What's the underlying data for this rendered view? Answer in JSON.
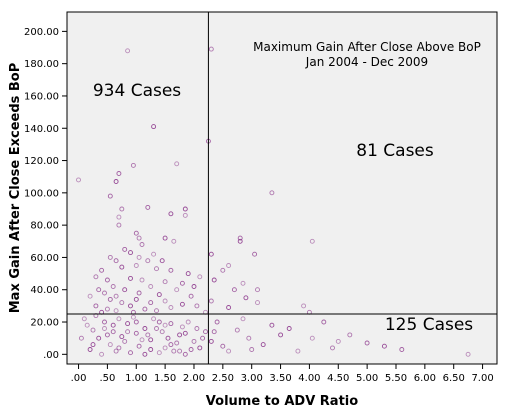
{
  "chart_data": {
    "type": "scatter",
    "title": "Maximum Gain After Close Above BoP",
    "subtitle": "Jan 2004 - Dec 2009",
    "xlabel": "Volume to ADV Ratio",
    "ylabel": "Max Gain After Close Exceeds BoP",
    "xlim": [
      -0.2,
      7.25
    ],
    "ylim": [
      -6,
      212
    ],
    "x_ticks": [
      ".00",
      ".50",
      "1.00",
      "1.50",
      "2.00",
      "2.50",
      "3.00",
      "3.50",
      "4.00",
      "4.50",
      "5.00",
      "5.50",
      "6.00",
      "6.50",
      "7.00"
    ],
    "x_tick_values": [
      0,
      0.5,
      1,
      1.5,
      2,
      2.5,
      3,
      3.5,
      4,
      4.5,
      5,
      5.5,
      6,
      6.5,
      7
    ],
    "y_ticks": [
      ".00",
      "20.00",
      "40.00",
      "60.00",
      "80.00",
      "100.00",
      "120.00",
      "140.00",
      "160.00",
      "180.00",
      "200.00"
    ],
    "y_tick_values": [
      0,
      20,
      40,
      60,
      80,
      100,
      120,
      140,
      160,
      180,
      200
    ],
    "reference_lines": {
      "x": 2.25,
      "y": 25
    },
    "quadrant_labels": [
      "934 Cases",
      "81 Cases",
      "125 Cases"
    ],
    "grid": false,
    "legend": "none",
    "marker_color": "#8e3a8e",
    "background_color": "#f0f0f0",
    "points": [
      [
        0.85,
        188
      ],
      [
        2.3,
        189
      ],
      [
        2.25,
        132
      ],
      [
        1.3,
        141
      ],
      [
        1.7,
        118
      ],
      [
        0.95,
        117
      ],
      [
        0.7,
        112
      ],
      [
        0.65,
        107
      ],
      [
        0.0,
        108
      ],
      [
        3.35,
        100
      ],
      [
        0.55,
        98
      ],
      [
        1.85,
        90
      ],
      [
        1.85,
        86
      ],
      [
        0.75,
        90
      ],
      [
        1.2,
        91
      ],
      [
        1.6,
        87
      ],
      [
        0.7,
        85
      ],
      [
        0.7,
        80
      ],
      [
        2.8,
        72
      ],
      [
        2.8,
        70
      ],
      [
        4.05,
        70
      ],
      [
        1.05,
        72
      ],
      [
        1.0,
        75
      ],
      [
        1.5,
        72
      ],
      [
        1.65,
        70
      ],
      [
        1.1,
        68
      ],
      [
        0.8,
        65
      ],
      [
        0.9,
        63
      ],
      [
        1.3,
        62
      ],
      [
        0.55,
        60
      ],
      [
        3.05,
        62
      ],
      [
        2.3,
        62
      ],
      [
        1.05,
        60
      ],
      [
        1.2,
        58
      ],
      [
        0.65,
        58
      ],
      [
        1.45,
        58
      ],
      [
        2.6,
        55
      ],
      [
        2.5,
        52
      ],
      [
        0.4,
        52
      ],
      [
        0.75,
        54
      ],
      [
        1.0,
        55
      ],
      [
        1.35,
        53
      ],
      [
        1.6,
        52
      ],
      [
        1.9,
        50
      ],
      [
        2.1,
        48
      ],
      [
        0.3,
        48
      ],
      [
        0.5,
        46
      ],
      [
        0.9,
        47
      ],
      [
        1.1,
        46
      ],
      [
        1.5,
        45
      ],
      [
        1.8,
        44
      ],
      [
        2.35,
        46
      ],
      [
        2.85,
        44
      ],
      [
        3.1,
        40
      ],
      [
        2.7,
        40
      ],
      [
        2.0,
        42
      ],
      [
        1.25,
        42
      ],
      [
        0.6,
        42
      ],
      [
        0.35,
        40
      ],
      [
        0.8,
        40
      ],
      [
        1.7,
        40
      ],
      [
        0.45,
        38
      ],
      [
        1.05,
        38
      ],
      [
        1.4,
        37
      ],
      [
        0.2,
        36
      ],
      [
        0.65,
        36
      ],
      [
        1.95,
        36
      ],
      [
        2.9,
        35
      ],
      [
        3.1,
        32
      ],
      [
        2.3,
        33
      ],
      [
        0.55,
        34
      ],
      [
        1.0,
        34
      ],
      [
        1.5,
        33
      ],
      [
        0.75,
        32
      ],
      [
        1.25,
        32
      ],
      [
        1.8,
        31
      ],
      [
        3.9,
        30
      ],
      [
        2.05,
        30
      ],
      [
        0.3,
        30
      ],
      [
        0.9,
        30
      ],
      [
        1.6,
        29
      ],
      [
        0.5,
        28
      ],
      [
        1.15,
        28
      ],
      [
        2.6,
        29
      ],
      [
        0.65,
        27
      ],
      [
        1.35,
        27
      ],
      [
        0.95,
        26
      ],
      [
        0.4,
        26
      ],
      [
        2.2,
        26
      ],
      [
        4.0,
        26
      ],
      [
        4.25,
        20
      ],
      [
        3.35,
        18
      ],
      [
        2.85,
        22
      ],
      [
        2.75,
        15
      ],
      [
        2.35,
        14
      ],
      [
        3.5,
        12
      ],
      [
        4.05,
        10
      ],
      [
        4.7,
        12
      ],
      [
        5.0,
        7
      ],
      [
        5.3,
        5
      ],
      [
        6.75,
        0
      ],
      [
        3.0,
        3
      ],
      [
        2.5,
        5
      ],
      [
        2.3,
        8
      ],
      [
        0.1,
        22
      ],
      [
        0.25,
        15
      ],
      [
        0.45,
        20
      ],
      [
        0.6,
        18
      ],
      [
        0.7,
        22
      ],
      [
        0.85,
        14
      ],
      [
        1.0,
        20
      ],
      [
        1.15,
        16
      ],
      [
        1.3,
        22
      ],
      [
        1.45,
        14
      ],
      [
        1.6,
        19
      ],
      [
        1.75,
        12
      ],
      [
        1.9,
        20
      ],
      [
        2.05,
        16
      ],
      [
        2.15,
        10
      ],
      [
        0.35,
        10
      ],
      [
        0.55,
        6
      ],
      [
        0.8,
        8
      ],
      [
        1.05,
        5
      ],
      [
        1.25,
        9
      ],
      [
        1.5,
        4
      ],
      [
        1.7,
        7
      ],
      [
        1.95,
        3
      ],
      [
        0.2,
        3
      ],
      [
        0.4,
        0
      ],
      [
        0.65,
        2
      ],
      [
        0.9,
        1
      ],
      [
        1.15,
        0
      ],
      [
        1.4,
        1
      ],
      [
        1.65,
        2
      ],
      [
        1.85,
        0
      ],
      [
        2.1,
        4
      ],
      [
        0.15,
        18
      ],
      [
        0.3,
        24
      ],
      [
        0.5,
        12
      ],
      [
        0.75,
        11
      ],
      [
        0.95,
        23
      ],
      [
        1.2,
        12
      ],
      [
        1.4,
        20
      ],
      [
        1.55,
        10
      ],
      [
        1.8,
        17
      ],
      [
        2.0,
        8
      ],
      [
        0.6,
        14
      ],
      [
        0.85,
        19
      ],
      [
        1.1,
        9
      ],
      [
        1.35,
        16
      ],
      [
        1.6,
        6
      ],
      [
        1.85,
        13
      ],
      [
        0.45,
        16
      ],
      [
        0.7,
        4
      ],
      [
        1.0,
        13
      ],
      [
        1.25,
        3
      ],
      [
        1.5,
        18
      ],
      [
        1.75,
        2
      ],
      [
        2.2,
        14
      ],
      [
        0.25,
        6
      ],
      [
        3.8,
        2
      ],
      [
        4.4,
        4
      ],
      [
        5.6,
        3
      ],
      [
        3.2,
        6
      ],
      [
        2.6,
        2
      ],
      [
        0.05,
        10
      ],
      [
        2.4,
        20
      ],
      [
        3.65,
        16
      ],
      [
        4.5,
        8
      ],
      [
        2.95,
        10
      ]
    ]
  }
}
